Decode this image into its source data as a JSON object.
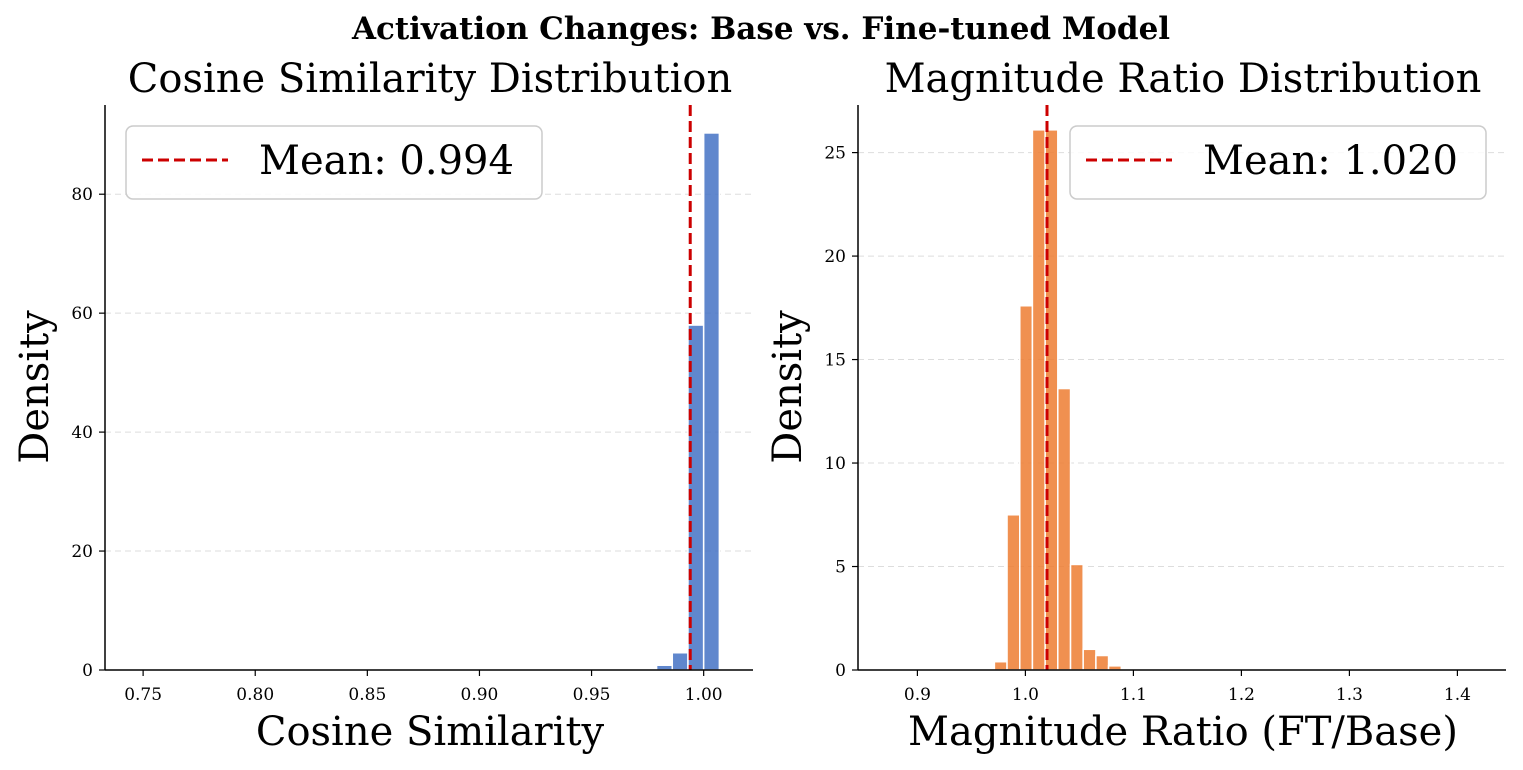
{
  "figure_title": "Activation Changes: Base vs. Fine-tuned Model",
  "chart_data": [
    {
      "type": "histogram",
      "title": "Cosine Similarity Distribution",
      "xlabel": "Cosine Similarity",
      "ylabel": "Density",
      "xlim": [
        0.733,
        1.022
      ],
      "ylim": [
        0,
        95
      ],
      "xticks": [
        0.75,
        0.8,
        0.85,
        0.9,
        0.95,
        1.0
      ],
      "xtick_labels": [
        "0.75",
        "0.80",
        "0.85",
        "0.90",
        "0.95",
        "1.00"
      ],
      "yticks": [
        0,
        20,
        40,
        60,
        80
      ],
      "ytick_labels": [
        "0",
        "20",
        "40",
        "60",
        "80"
      ],
      "grid": "y-dashed",
      "bar_color": "#4472c4",
      "bins": [
        {
          "x0": 0.979,
          "x1": 0.986,
          "value": 0.8
        },
        {
          "x0": 0.986,
          "x1": 0.993,
          "value": 2.9
        },
        {
          "x0": 0.993,
          "x1": 1.0,
          "value": 58.0
        },
        {
          "x0": 1.0,
          "x1": 1.007,
          "value": 90.3
        }
      ],
      "mean": {
        "value": 0.994,
        "color": "#cc0000",
        "label": "Mean: 0.994"
      },
      "legend": {
        "placement": "upper-left"
      }
    },
    {
      "type": "histogram",
      "title": "Magnitude Ratio Distribution",
      "xlabel": "Magnitude Ratio (FT/Base)",
      "ylabel": "Density",
      "xlim": [
        0.845,
        1.445
      ],
      "ylim": [
        0,
        27.3
      ],
      "xticks": [
        0.9,
        1.0,
        1.1,
        1.2,
        1.3,
        1.4
      ],
      "xtick_labels": [
        "0.9",
        "1.0",
        "1.1",
        "1.2",
        "1.3",
        "1.4"
      ],
      "yticks": [
        0,
        5,
        10,
        15,
        20,
        25
      ],
      "ytick_labels": [
        "0",
        "5",
        "10",
        "15",
        "20",
        "25"
      ],
      "grid": "y-dashed",
      "bar_color": "#ed7d31",
      "bins": [
        {
          "x0": 0.9713,
          "x1": 0.983,
          "value": 0.4
        },
        {
          "x0": 0.983,
          "x1": 0.9948,
          "value": 7.5
        },
        {
          "x0": 0.9948,
          "x1": 1.0065,
          "value": 17.6
        },
        {
          "x0": 1.0065,
          "x1": 1.0183,
          "value": 26.1
        },
        {
          "x0": 1.0183,
          "x1": 1.03,
          "value": 26.1
        },
        {
          "x0": 1.03,
          "x1": 1.0418,
          "value": 13.6
        },
        {
          "x0": 1.0418,
          "x1": 1.0535,
          "value": 5.1
        },
        {
          "x0": 1.0535,
          "x1": 1.0653,
          "value": 1.0
        },
        {
          "x0": 1.0653,
          "x1": 1.077,
          "value": 0.7
        },
        {
          "x0": 1.077,
          "x1": 1.0888,
          "value": 0.2
        }
      ],
      "mean": {
        "value": 1.02,
        "color": "#cc0000",
        "label": "Mean: 1.020"
      },
      "legend": {
        "placement": "upper-right"
      }
    }
  ]
}
